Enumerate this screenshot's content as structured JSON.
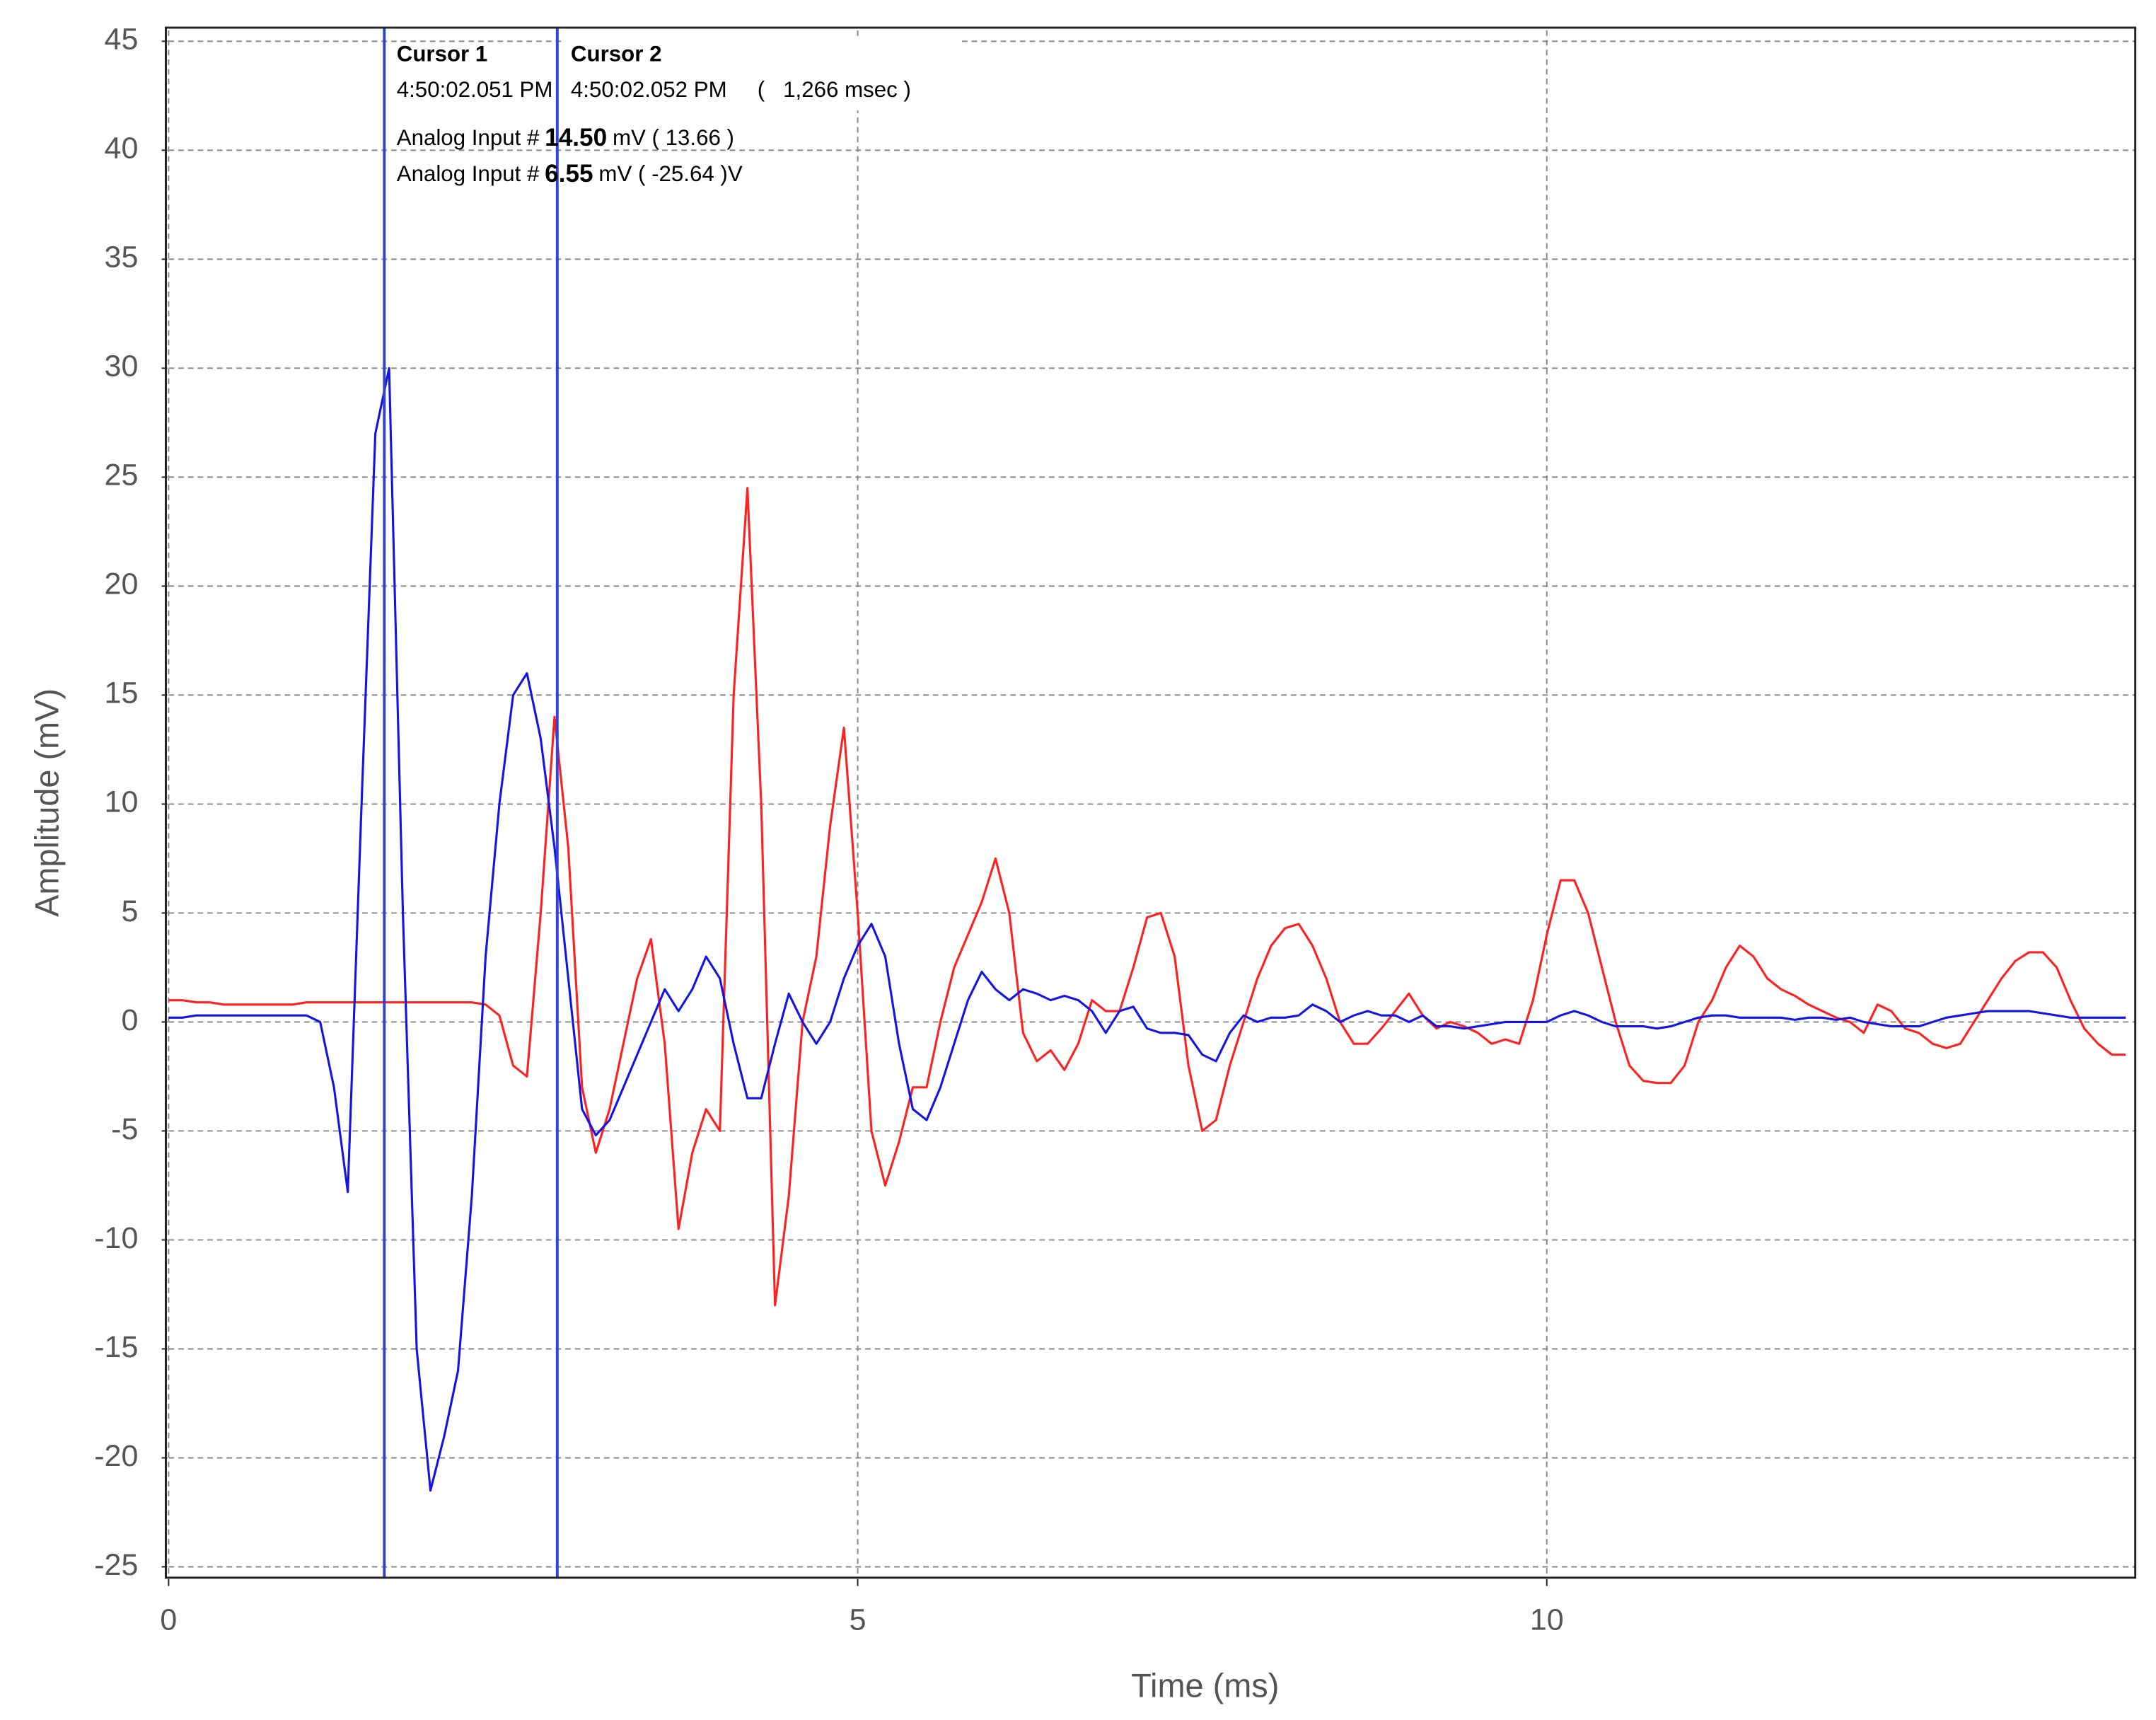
{
  "chart_data": {
    "type": "line",
    "xlabel": "Time (ms)",
    "ylabel": "Amplitude (mV)",
    "xlim": [
      0,
      14.27
    ],
    "ylim": [
      -25.5,
      45.5
    ],
    "xticks": [
      0,
      5,
      10
    ],
    "yticks": [
      -25,
      -20,
      -15,
      -10,
      -5,
      0,
      5,
      10,
      15,
      20,
      25,
      30,
      35,
      40,
      45
    ],
    "grid": true,
    "x": [
      0,
      0.1,
      0.2,
      0.3,
      0.4,
      0.5,
      0.6,
      0.7,
      0.8,
      0.9,
      1,
      1.1,
      1.2,
      1.3,
      1.4,
      1.5,
      1.6,
      1.7,
      1.8,
      1.9,
      2,
      2.1,
      2.2,
      2.3,
      2.4,
      2.5,
      2.6,
      2.7,
      2.8,
      2.9,
      3,
      3.1,
      3.2,
      3.3,
      3.4,
      3.5,
      3.6,
      3.7,
      3.8,
      3.9,
      4,
      4.1,
      4.2,
      4.3,
      4.4,
      4.5,
      4.6,
      4.7,
      4.8,
      4.9,
      5,
      5.1,
      5.2,
      5.3,
      5.4,
      5.5,
      5.6,
      5.7,
      5.8,
      5.9,
      6,
      6.1,
      6.2,
      6.3,
      6.4,
      6.5,
      6.6,
      6.7,
      6.8,
      6.9,
      7,
      7.1,
      7.2,
      7.3,
      7.4,
      7.5,
      7.6,
      7.7,
      7.8,
      7.9,
      8,
      8.1,
      8.2,
      8.3,
      8.4,
      8.5,
      8.6,
      8.7,
      8.8,
      8.9,
      9,
      9.1,
      9.2,
      9.3,
      9.4,
      9.5,
      9.6,
      9.7,
      9.8,
      9.9,
      10,
      10.1,
      10.2,
      10.3,
      10.4,
      10.5,
      10.6,
      10.7,
      10.8,
      10.9,
      11,
      11.1,
      11.2,
      11.3,
      11.4,
      11.5,
      11.6,
      11.7,
      11.8,
      11.9,
      12,
      12.1,
      12.2,
      12.3,
      12.4,
      12.5,
      12.6,
      12.7,
      12.8,
      12.9,
      13,
      13.1,
      13.2,
      13.3,
      13.4,
      13.5,
      13.6,
      13.7,
      13.8,
      13.9,
      14,
      14.1,
      14.2
    ],
    "series": [
      {
        "color": "#ff2020",
        "values": [
          1.0,
          1.0,
          0.9,
          0.9,
          0.8,
          0.8,
          0.8,
          0.8,
          0.8,
          0.8,
          0.9,
          0.9,
          0.9,
          0.9,
          0.9,
          0.9,
          0.9,
          0.9,
          0.9,
          0.9,
          0.9,
          0.9,
          0.9,
          0.8,
          0.3,
          -2,
          -2.5,
          5,
          14,
          8,
          -3,
          -6,
          -4,
          -1,
          2,
          3.8,
          -1,
          -9.5,
          -6,
          -4,
          -5,
          15,
          24.5,
          10,
          -13,
          -8,
          0,
          3,
          9,
          13.5,
          5,
          -5,
          -7.5,
          -5.5,
          -3,
          -3,
          0,
          2.5,
          4,
          5.5,
          7.5,
          5,
          -0.5,
          -1.8,
          -1.3,
          -2.2,
          -1,
          1,
          0.5,
          0.5,
          2.5,
          4.8,
          5,
          3,
          -2,
          -5,
          -4.5,
          -2,
          0,
          2,
          3.5,
          4.3,
          4.5,
          3.5,
          2,
          0,
          -1,
          -1,
          -0.3,
          0.5,
          1.3,
          0.3,
          -0.3,
          0,
          -0.2,
          -0.5,
          -1,
          -0.8,
          -1,
          1,
          4,
          6.5,
          6.5,
          5,
          2.5,
          0,
          -2,
          -2.7,
          -2.8,
          -2.8,
          -2,
          0,
          1,
          2.5,
          3.5,
          3,
          2,
          1.5,
          1.2,
          0.8,
          0.5,
          0.2,
          0,
          -0.5,
          0.8,
          0.5,
          -0.3,
          -0.5,
          -1,
          -1.2,
          -1,
          0,
          1,
          2,
          2.8,
          3.2,
          3.2,
          2.5,
          1,
          -0.3,
          -1,
          -1.5,
          -1.5
        ]
      },
      {
        "color": "#1414e6",
        "values": [
          0.2,
          0.2,
          0.3,
          0.3,
          0.3,
          0.3,
          0.3,
          0.3,
          0.3,
          0.3,
          0.3,
          0,
          -3,
          -7.8,
          10,
          27,
          30,
          5,
          -15,
          -21.5,
          -19,
          -16,
          -8,
          3,
          10,
          15,
          16,
          13,
          8,
          2,
          -4,
          -5.2,
          -4.5,
          -3,
          -1.5,
          0,
          1.5,
          0.5,
          1.5,
          3,
          2,
          -1,
          -3.5,
          -3.5,
          -1,
          1.3,
          0,
          -1,
          0,
          2,
          3.5,
          4.5,
          3,
          -1,
          -4,
          -4.5,
          -3,
          -1,
          1,
          2.3,
          1.5,
          1,
          1.5,
          1.3,
          1,
          1.2,
          1,
          0.5,
          -0.5,
          0.5,
          0.7,
          -0.3,
          -0.5,
          -0.5,
          -0.6,
          -1.5,
          -1.8,
          -0.5,
          0.3,
          0,
          0.2,
          0.2,
          0.3,
          0.8,
          0.5,
          0,
          0.3,
          0.5,
          0.3,
          0.3,
          0,
          0.3,
          -0.2,
          -0.2,
          -0.3,
          -0.2,
          -0.1,
          0,
          0,
          0,
          0,
          0.3,
          0.5,
          0.3,
          0,
          -0.2,
          -0.2,
          -0.2,
          -0.3,
          -0.2,
          0,
          0.2,
          0.3,
          0.3,
          0.2,
          0.2,
          0.2,
          0.2,
          0.1,
          0.2,
          0.2,
          0.1,
          0.2,
          0,
          -0.1,
          -0.2,
          -0.2,
          -0.2,
          0,
          0.2,
          0.3,
          0.4,
          0.5,
          0.5,
          0.5,
          0.5,
          0.4,
          0.3,
          0.2,
          0.2,
          0.2,
          0.2,
          0.2
        ]
      }
    ],
    "cursor_color": "#3040d8",
    "cursors": [
      {
        "name": "Cursor 1",
        "x": 1.565,
        "time": "4:50:02.051 PM"
      },
      {
        "name": "Cursor 2",
        "x": 2.82,
        "time": "4:50:02.052 PM",
        "delta": "(   1,266 msec )"
      }
    ],
    "readouts": [
      {
        "label": "Analog Input #",
        "value": "14.50",
        "unit_text": "mV ( 13.66 )",
        "color": "#ff2020"
      },
      {
        "label": "Analog Input #",
        "value": "6.55",
        "unit_text": "mV ( -25.64 )V",
        "color": "#1414e6"
      }
    ]
  }
}
